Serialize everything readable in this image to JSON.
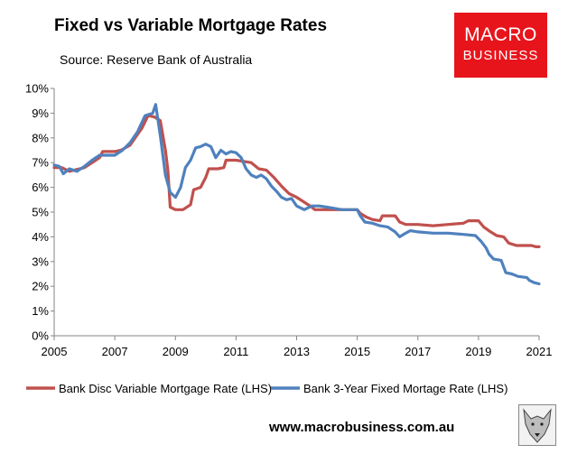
{
  "header": {
    "title": "Fixed vs Variable Mortgage Rates",
    "source": "Source: Reserve Bank of Australia"
  },
  "logo": {
    "line1": "MACRO",
    "line2": "BUSINESS"
  },
  "footer": {
    "url": "www.macrobusiness.com.au"
  },
  "colors": {
    "variable": "#c0504d",
    "fixed": "#4f81bd"
  },
  "chart_data": {
    "type": "line",
    "title": "Fixed vs Variable Mortgage Rates",
    "xlabel": "",
    "ylabel": "",
    "xlim": [
      2005,
      2021
    ],
    "ylim": [
      0,
      10
    ],
    "x_ticks": [
      2005,
      2007,
      2009,
      2011,
      2013,
      2015,
      2017,
      2019,
      2021
    ],
    "y_ticks": [
      "0%",
      "1%",
      "2%",
      "3%",
      "4%",
      "5%",
      "6%",
      "7%",
      "8%",
      "9%",
      "10%"
    ],
    "grid": false,
    "legend_position": "bottom",
    "series": [
      {
        "name": "Bank Disc Variable Mortgage Rate (LHS)",
        "color": "#c0504d",
        "points": [
          [
            2005.0,
            6.8
          ],
          [
            2005.25,
            6.8
          ],
          [
            2005.5,
            6.65
          ],
          [
            2006.0,
            6.8
          ],
          [
            2006.25,
            7.0
          ],
          [
            2006.5,
            7.2
          ],
          [
            2006.6,
            7.45
          ],
          [
            2007.0,
            7.45
          ],
          [
            2007.2,
            7.5
          ],
          [
            2007.5,
            7.7
          ],
          [
            2007.67,
            8.0
          ],
          [
            2007.9,
            8.4
          ],
          [
            2008.1,
            8.9
          ],
          [
            2008.3,
            8.85
          ],
          [
            2008.5,
            8.7
          ],
          [
            2008.67,
            7.5
          ],
          [
            2008.75,
            6.7
          ],
          [
            2008.83,
            5.2
          ],
          [
            2009.0,
            5.1
          ],
          [
            2009.25,
            5.1
          ],
          [
            2009.5,
            5.3
          ],
          [
            2009.6,
            5.9
          ],
          [
            2009.83,
            6.0
          ],
          [
            2010.0,
            6.4
          ],
          [
            2010.1,
            6.75
          ],
          [
            2010.4,
            6.75
          ],
          [
            2010.6,
            6.8
          ],
          [
            2010.67,
            7.1
          ],
          [
            2011.0,
            7.1
          ],
          [
            2011.25,
            7.05
          ],
          [
            2011.5,
            7.0
          ],
          [
            2011.75,
            6.75
          ],
          [
            2012.0,
            6.7
          ],
          [
            2012.25,
            6.4
          ],
          [
            2012.5,
            6.05
          ],
          [
            2012.75,
            5.75
          ],
          [
            2013.0,
            5.6
          ],
          [
            2013.25,
            5.4
          ],
          [
            2013.5,
            5.2
          ],
          [
            2013.6,
            5.1
          ],
          [
            2014.0,
            5.1
          ],
          [
            2014.5,
            5.1
          ],
          [
            2015.0,
            5.1
          ],
          [
            2015.1,
            4.95
          ],
          [
            2015.3,
            4.8
          ],
          [
            2015.5,
            4.7
          ],
          [
            2015.75,
            4.65
          ],
          [
            2015.83,
            4.85
          ],
          [
            2016.25,
            4.85
          ],
          [
            2016.4,
            4.6
          ],
          [
            2016.6,
            4.5
          ],
          [
            2017.0,
            4.5
          ],
          [
            2017.5,
            4.45
          ],
          [
            2018.0,
            4.5
          ],
          [
            2018.5,
            4.55
          ],
          [
            2018.67,
            4.65
          ],
          [
            2019.0,
            4.65
          ],
          [
            2019.17,
            4.4
          ],
          [
            2019.4,
            4.2
          ],
          [
            2019.6,
            4.05
          ],
          [
            2019.83,
            4.0
          ],
          [
            2020.0,
            3.75
          ],
          [
            2020.25,
            3.65
          ],
          [
            2020.75,
            3.65
          ],
          [
            2020.9,
            3.6
          ],
          [
            2021.0,
            3.6
          ]
        ]
      },
      {
        "name": "Bank 3-Year Fixed Mortage Rate (LHS)",
        "color": "#4f81bd",
        "points": [
          [
            2005.0,
            6.9
          ],
          [
            2005.17,
            6.85
          ],
          [
            2005.3,
            6.55
          ],
          [
            2005.5,
            6.75
          ],
          [
            2005.75,
            6.65
          ],
          [
            2006.0,
            6.85
          ],
          [
            2006.25,
            7.1
          ],
          [
            2006.5,
            7.3
          ],
          [
            2007.0,
            7.3
          ],
          [
            2007.25,
            7.5
          ],
          [
            2007.5,
            7.8
          ],
          [
            2007.75,
            8.25
          ],
          [
            2008.0,
            8.9
          ],
          [
            2008.25,
            9.0
          ],
          [
            2008.35,
            9.35
          ],
          [
            2008.5,
            8.1
          ],
          [
            2008.67,
            6.5
          ],
          [
            2008.83,
            5.8
          ],
          [
            2009.0,
            5.6
          ],
          [
            2009.17,
            6.0
          ],
          [
            2009.33,
            6.8
          ],
          [
            2009.5,
            7.1
          ],
          [
            2009.67,
            7.6
          ],
          [
            2009.83,
            7.65
          ],
          [
            2010.0,
            7.75
          ],
          [
            2010.17,
            7.65
          ],
          [
            2010.33,
            7.2
          ],
          [
            2010.5,
            7.5
          ],
          [
            2010.67,
            7.35
          ],
          [
            2010.83,
            7.45
          ],
          [
            2011.0,
            7.4
          ],
          [
            2011.17,
            7.2
          ],
          [
            2011.33,
            6.75
          ],
          [
            2011.5,
            6.5
          ],
          [
            2011.67,
            6.4
          ],
          [
            2011.83,
            6.5
          ],
          [
            2012.0,
            6.35
          ],
          [
            2012.17,
            6.05
          ],
          [
            2012.33,
            5.85
          ],
          [
            2012.5,
            5.6
          ],
          [
            2012.67,
            5.5
          ],
          [
            2012.83,
            5.55
          ],
          [
            2013.0,
            5.25
          ],
          [
            2013.25,
            5.1
          ],
          [
            2013.5,
            5.25
          ],
          [
            2013.75,
            5.25
          ],
          [
            2014.0,
            5.2
          ],
          [
            2014.5,
            5.1
          ],
          [
            2015.0,
            5.1
          ],
          [
            2015.1,
            4.85
          ],
          [
            2015.25,
            4.6
          ],
          [
            2015.5,
            4.55
          ],
          [
            2015.75,
            4.45
          ],
          [
            2016.0,
            4.4
          ],
          [
            2016.25,
            4.2
          ],
          [
            2016.4,
            4.0
          ],
          [
            2016.6,
            4.15
          ],
          [
            2016.75,
            4.25
          ],
          [
            2017.0,
            4.2
          ],
          [
            2017.5,
            4.15
          ],
          [
            2018.0,
            4.15
          ],
          [
            2018.5,
            4.1
          ],
          [
            2018.9,
            4.05
          ],
          [
            2019.1,
            3.8
          ],
          [
            2019.25,
            3.55
          ],
          [
            2019.35,
            3.3
          ],
          [
            2019.5,
            3.1
          ],
          [
            2019.75,
            3.05
          ],
          [
            2019.9,
            2.55
          ],
          [
            2020.1,
            2.5
          ],
          [
            2020.3,
            2.4
          ],
          [
            2020.6,
            2.35
          ],
          [
            2020.67,
            2.25
          ],
          [
            2020.83,
            2.15
          ],
          [
            2021.0,
            2.1
          ]
        ]
      }
    ]
  }
}
